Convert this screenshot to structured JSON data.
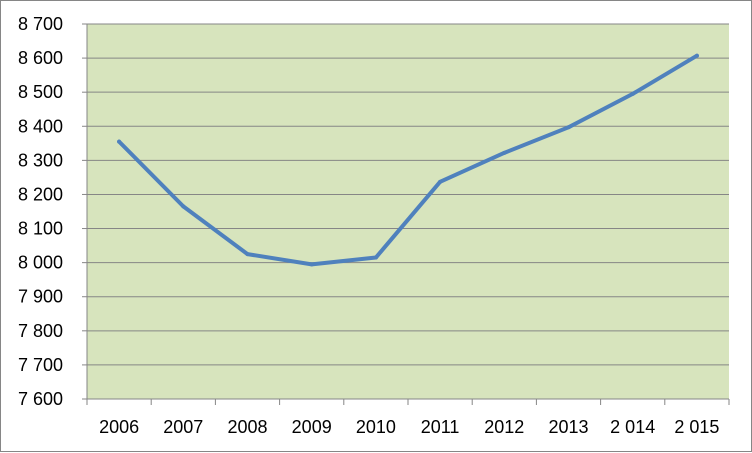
{
  "chart_data": {
    "type": "line",
    "title": "",
    "xlabel": "",
    "ylabel": "",
    "categories": [
      "2006",
      "2007",
      "2008",
      "2009",
      "2010",
      "2011",
      "2012",
      "2013",
      "2 014",
      "2 015"
    ],
    "series": [
      {
        "values": [
          8355,
          8165,
          8025,
          7995,
          8015,
          8237,
          8322,
          8397,
          8495,
          8607
        ]
      }
    ],
    "ylim": [
      7600,
      8700
    ],
    "y_ticks": [
      7600,
      7700,
      7800,
      7900,
      8000,
      8100,
      8200,
      8300,
      8400,
      8500,
      8600,
      8700
    ],
    "y_tick_labels": [
      "7 600",
      "7 700",
      "7 800",
      "7 900",
      "8 000",
      "8 100",
      "8 200",
      "8 300",
      "8 400",
      "8 500",
      "8 600",
      "8 700"
    ],
    "grid": true,
    "legend": "none",
    "colors": {
      "plot_background": "#d7e4bd",
      "line": "#4f81bd",
      "gridline": "#868686",
      "axis": "#868686"
    }
  }
}
